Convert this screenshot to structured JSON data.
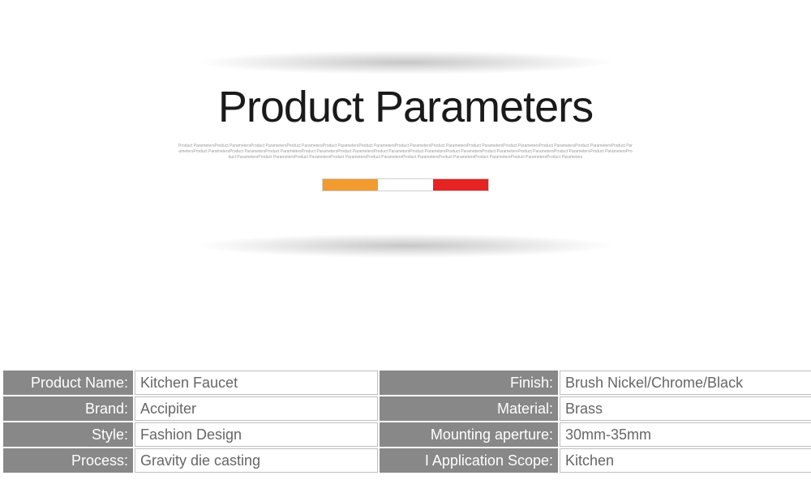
{
  "banner": {
    "title": "Product Parameters",
    "microtext": "Product ParametersProduct ParametersProduct ParametersProduct ParametersProduct ParametersProduct ParametersProduct ParametersProduct ParametersProduct ParametersProduct ParametersProduct ParametersProduct ParametersProduct ParametersProduct ParametersProduct ParametersProduct ParametersProduct ParametersProduct ParametersProduct ParametersProduct ParametersProduct ParametersProduct ParametersProduct ParametersProduct ParametersProduct ParametersProduct ParametersProduct ParametersProduct ParametersProduct ParametersProduct ParametersProduct ParametersProduct ParametersProduct ParametersProduct ParametersProduct Parameters",
    "bar_colors": [
      "#f29b2e",
      "#ffffff",
      "#e62323"
    ]
  },
  "table": {
    "label_bg": "#888888",
    "label_text": "#ffffff",
    "value_border": "#bfbfbf",
    "value_text": "#666666",
    "value_bg": "#ffffff",
    "font_size": 18,
    "rows": [
      {
        "l1": "Product Name:",
        "v1": "Kitchen Faucet",
        "l2": "Finish:",
        "v2": "Brush Nickel/Chrome/Black"
      },
      {
        "l1": "Brand:",
        "v1": "Accipiter",
        "l2": "Material:",
        "v2": "Brass"
      },
      {
        "l1": "Style:",
        "v1": "Fashion Design",
        "l2": "Mounting aperture:",
        "v2": "30mm-35mm"
      },
      {
        "l1": "Process:",
        "v1": "Gravity die casting",
        "l2": "I Application Scope:",
        "v2": "Kitchen"
      }
    ]
  }
}
